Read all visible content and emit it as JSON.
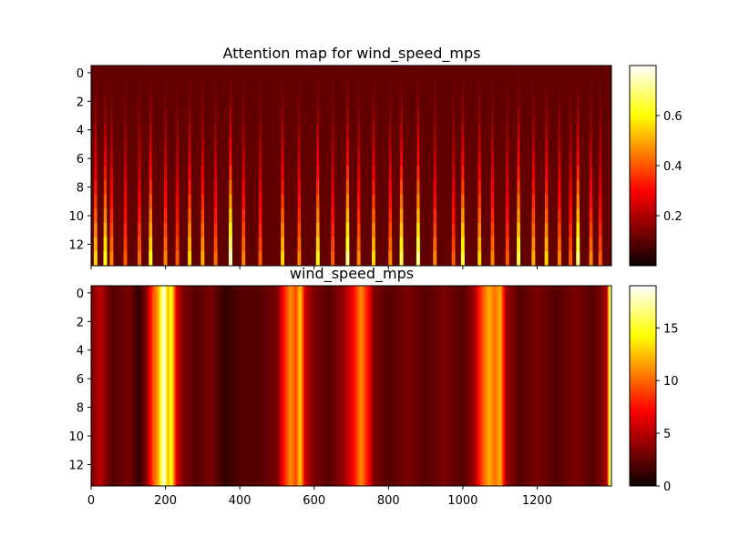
{
  "chart_data": [
    {
      "type": "heatmap",
      "title": "Attention map for wind_speed_mps",
      "xlabel": "",
      "ylabel": "",
      "xlim": [
        0,
        1400
      ],
      "ylim": [
        13.5,
        -0.5
      ],
      "x_ticks": [],
      "x_ticks_shown": true,
      "y_ticks": [
        0,
        2,
        4,
        6,
        8,
        10,
        12
      ],
      "colormap": "hot",
      "colorbar": {
        "range": [
          0.0,
          0.8
        ],
        "ticks": [
          0.2,
          0.4,
          0.6
        ]
      },
      "rows": 14,
      "row_base_value": 0.1,
      "bands": [
        {
          "x": 12,
          "peak": 0.55
        },
        {
          "x": 38,
          "peak": 0.62
        },
        {
          "x": 55,
          "peak": 0.45
        },
        {
          "x": 92,
          "peak": 0.4
        },
        {
          "x": 130,
          "peak": 0.42
        },
        {
          "x": 160,
          "peak": 0.6
        },
        {
          "x": 200,
          "peak": 0.45
        },
        {
          "x": 232,
          "peak": 0.4
        },
        {
          "x": 265,
          "peak": 0.55
        },
        {
          "x": 300,
          "peak": 0.5
        },
        {
          "x": 335,
          "peak": 0.42
        },
        {
          "x": 375,
          "peak": 0.75
        },
        {
          "x": 410,
          "peak": 0.45
        },
        {
          "x": 455,
          "peak": 0.4
        },
        {
          "x": 515,
          "peak": 0.55
        },
        {
          "x": 560,
          "peak": 0.45
        },
        {
          "x": 610,
          "peak": 0.6
        },
        {
          "x": 650,
          "peak": 0.4
        },
        {
          "x": 690,
          "peak": 0.7
        },
        {
          "x": 720,
          "peak": 0.45
        },
        {
          "x": 760,
          "peak": 0.55
        },
        {
          "x": 805,
          "peak": 0.45
        },
        {
          "x": 835,
          "peak": 0.65
        },
        {
          "x": 880,
          "peak": 0.7
        },
        {
          "x": 925,
          "peak": 0.45
        },
        {
          "x": 975,
          "peak": 0.4
        },
        {
          "x": 1000,
          "peak": 0.65
        },
        {
          "x": 1045,
          "peak": 0.55
        },
        {
          "x": 1080,
          "peak": 0.45
        },
        {
          "x": 1120,
          "peak": 0.4
        },
        {
          "x": 1150,
          "peak": 0.65
        },
        {
          "x": 1190,
          "peak": 0.5
        },
        {
          "x": 1225,
          "peak": 0.55
        },
        {
          "x": 1260,
          "peak": 0.45
        },
        {
          "x": 1290,
          "peak": 0.4
        },
        {
          "x": 1310,
          "peak": 0.7
        },
        {
          "x": 1345,
          "peak": 0.45
        },
        {
          "x": 1370,
          "peak": 0.4
        }
      ]
    },
    {
      "type": "heatmap",
      "title": "wind_speed_mps",
      "xlabel": "",
      "ylabel": "",
      "xlim": [
        0,
        1400
      ],
      "ylim": [
        13.5,
        -0.5
      ],
      "x_ticks": [
        0,
        200,
        400,
        600,
        800,
        1000,
        1200
      ],
      "y_ticks": [
        0,
        2,
        4,
        6,
        8,
        10,
        12
      ],
      "colormap": "hot",
      "colorbar": {
        "range": [
          0,
          19
        ],
        "ticks": [
          0,
          5,
          10,
          15
        ]
      },
      "rows": 14,
      "profile": [
        {
          "x": 0,
          "value": 3
        },
        {
          "x": 25,
          "value": 5
        },
        {
          "x": 40,
          "value": 3
        },
        {
          "x": 60,
          "value": 2
        },
        {
          "x": 100,
          "value": 3
        },
        {
          "x": 130,
          "value": 1
        },
        {
          "x": 150,
          "value": 4
        },
        {
          "x": 165,
          "value": 9
        },
        {
          "x": 180,
          "value": 12
        },
        {
          "x": 195,
          "value": 19
        },
        {
          "x": 205,
          "value": 12
        },
        {
          "x": 215,
          "value": 15
        },
        {
          "x": 230,
          "value": 5
        },
        {
          "x": 250,
          "value": 3
        },
        {
          "x": 280,
          "value": 2
        },
        {
          "x": 320,
          "value": 3
        },
        {
          "x": 360,
          "value": 1
        },
        {
          "x": 400,
          "value": 2
        },
        {
          "x": 450,
          "value": 2
        },
        {
          "x": 500,
          "value": 3
        },
        {
          "x": 520,
          "value": 8
        },
        {
          "x": 535,
          "value": 11
        },
        {
          "x": 550,
          "value": 9
        },
        {
          "x": 562,
          "value": 13
        },
        {
          "x": 575,
          "value": 5
        },
        {
          "x": 600,
          "value": 3
        },
        {
          "x": 640,
          "value": 2
        },
        {
          "x": 680,
          "value": 4
        },
        {
          "x": 700,
          "value": 6
        },
        {
          "x": 725,
          "value": 11
        },
        {
          "x": 740,
          "value": 8
        },
        {
          "x": 760,
          "value": 3
        },
        {
          "x": 800,
          "value": 2
        },
        {
          "x": 850,
          "value": 3
        },
        {
          "x": 900,
          "value": 2
        },
        {
          "x": 950,
          "value": 3
        },
        {
          "x": 1000,
          "value": 2
        },
        {
          "x": 1030,
          "value": 4
        },
        {
          "x": 1050,
          "value": 9
        },
        {
          "x": 1070,
          "value": 12
        },
        {
          "x": 1085,
          "value": 10
        },
        {
          "x": 1100,
          "value": 12
        },
        {
          "x": 1115,
          "value": 4
        },
        {
          "x": 1150,
          "value": 2
        },
        {
          "x": 1200,
          "value": 3
        },
        {
          "x": 1250,
          "value": 2
        },
        {
          "x": 1300,
          "value": 3
        },
        {
          "x": 1350,
          "value": 2
        },
        {
          "x": 1385,
          "value": 4
        },
        {
          "x": 1395,
          "value": 17
        },
        {
          "x": 1400,
          "value": 17
        }
      ]
    }
  ]
}
